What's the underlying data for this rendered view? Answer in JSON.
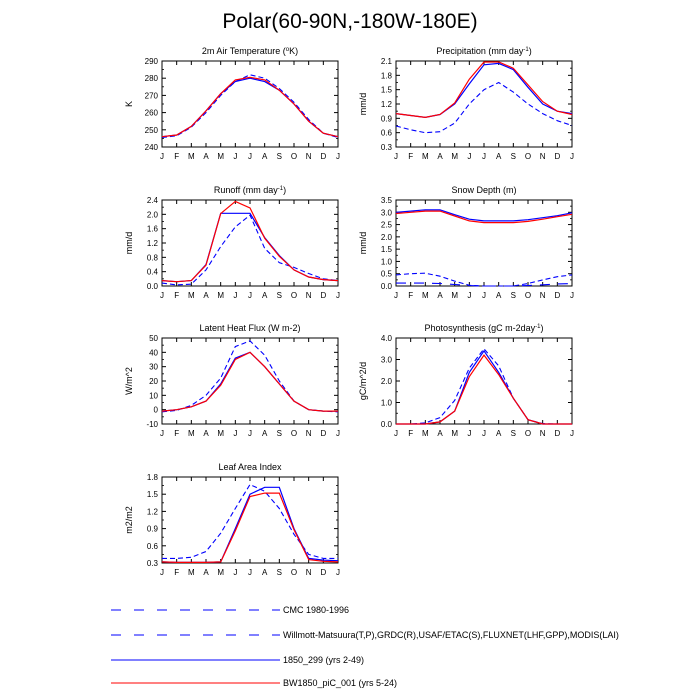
{
  "figure_title": "Polar(60-90N,-180W-180E)",
  "months": [
    "J",
    "F",
    "M",
    "A",
    "M",
    "J",
    "J",
    "A",
    "S",
    "O",
    "N",
    "D",
    "J"
  ],
  "colors": {
    "cmc": "#0000ff",
    "obs": "#0000ff",
    "case1": "#0000ff",
    "case2": "#ff0000"
  },
  "legend": [
    {
      "label": "CMC 1980-1996",
      "style": "cmc"
    },
    {
      "label": "Willmott-Matsuura(T,P),GRDC(R),USAF/ETAC(S),FLUXNET(LHF,GPP),MODIS(LAI)",
      "style": "obs"
    },
    {
      "label": "1850_299 (yrs 2-49)",
      "style": "case1"
    },
    {
      "label": "BW1850_piC_001 (yrs 5-24)",
      "style": "case2"
    }
  ],
  "chart_data": [
    {
      "type": "line",
      "id": "tsa",
      "title": "2m Air Temperature (°K)",
      "ylabel": "K",
      "ylim": [
        240,
        290
      ],
      "yticks": [
        "240",
        "250",
        "260",
        "270",
        "280",
        "290"
      ],
      "yvals": [
        240,
        250,
        260,
        270,
        280,
        290
      ],
      "series": [
        {
          "name": "Willmott-Matsuura(T,P),GRDC(R),USAF/ETAC(S),FLUXNET(LHF,GPP),MODIS(LAI)",
          "style": "obs",
          "values": [
            245.5,
            246.5,
            251.5,
            260,
            270,
            278,
            282,
            280,
            274,
            266,
            256,
            248,
            245.5
          ]
        },
        {
          "name": "1850_299 (yrs 2-49)",
          "style": "case1",
          "values": [
            246,
            247,
            252,
            261,
            271,
            278,
            280,
            278,
            273,
            265,
            255,
            248,
            246
          ]
        },
        {
          "name": "BW1850_piC_001 (yrs 5-24)",
          "style": "case2",
          "values": [
            246,
            247,
            252,
            261,
            271,
            279,
            280.5,
            279,
            273,
            265,
            255,
            248,
            246
          ]
        }
      ]
    },
    {
      "type": "line",
      "id": "precip",
      "title": "Precipitation (mm day-1)",
      "ylabel": "mm/d",
      "ylim": [
        0.3,
        2.1
      ],
      "yticks": [
        "0.3",
        "0.6",
        "0.9",
        "1.2",
        "1.5",
        "1.8",
        "2.1"
      ],
      "yvals": [
        0.3,
        0.6,
        0.9,
        1.2,
        1.5,
        1.8,
        2.1
      ],
      "series": [
        {
          "name": "Willmott-Matsuura(T,P),GRDC(R),USAF/ETAC(S),FLUXNET(LHF,GPP),MODIS(LAI)",
          "style": "obs",
          "values": [
            0.74,
            0.66,
            0.6,
            0.62,
            0.8,
            1.2,
            1.5,
            1.65,
            1.45,
            1.2,
            1.0,
            0.85,
            0.75
          ]
        },
        {
          "name": "1850_299 (yrs 2-49)",
          "style": "case1",
          "values": [
            1.0,
            0.96,
            0.92,
            0.98,
            1.2,
            1.62,
            2.02,
            2.05,
            1.92,
            1.55,
            1.2,
            1.05,
            1.0
          ]
        },
        {
          "name": "BW1850_piC_001 (yrs 5-24)",
          "style": "case2",
          "values": [
            1.0,
            0.96,
            0.92,
            0.98,
            1.22,
            1.72,
            2.08,
            2.08,
            1.95,
            1.6,
            1.25,
            1.05,
            0.98
          ]
        }
      ]
    },
    {
      "type": "line",
      "id": "runoff",
      "title": "Runoff (mm day-1)",
      "ylabel": "mm/d",
      "ylim": [
        0,
        2.4
      ],
      "yticks": [
        "0.0",
        "0.4",
        "0.8",
        "1.2",
        "1.6",
        "2.0",
        "2.4"
      ],
      "yvals": [
        0,
        0.4,
        0.8,
        1.2,
        1.6,
        2.0,
        2.4
      ],
      "series": [
        {
          "name": "Willmott-Matsuura(T,P),GRDC(R),USAF/ETAC(S),FLUXNET(LHF,GPP),MODIS(LAI)",
          "style": "obs",
          "values": [
            0.08,
            0.03,
            0.05,
            0.45,
            1.1,
            1.65,
            1.98,
            1.05,
            0.65,
            0.52,
            0.35,
            0.2,
            0.15
          ]
        },
        {
          "name": "1850_299 (yrs 2-49)",
          "style": "case1",
          "values": [
            0.15,
            0.12,
            0.15,
            0.6,
            2.03,
            2.03,
            2.03,
            1.35,
            0.85,
            0.45,
            0.25,
            0.18,
            0.15
          ]
        },
        {
          "name": "BW1850_piC_001 (yrs 5-24)",
          "style": "case2",
          "values": [
            0.15,
            0.12,
            0.15,
            0.58,
            2.02,
            2.36,
            2.18,
            1.33,
            0.83,
            0.45,
            0.25,
            0.18,
            0.15
          ]
        }
      ]
    },
    {
      "type": "line",
      "id": "snowdp",
      "title": "Snow Depth (m)",
      "ylabel": "mm/d",
      "ylim": [
        0,
        3.5
      ],
      "yticks": [
        "0.0",
        "0.5",
        "1.0",
        "1.5",
        "2.0",
        "2.5",
        "3.0",
        "3.5"
      ],
      "yvals": [
        0,
        0.5,
        1.0,
        1.5,
        2.0,
        2.5,
        3.0,
        3.5
      ],
      "series": [
        {
          "name": "CMC 1980-1996",
          "style": "cmc",
          "values": [
            0.12,
            0.12,
            0.12,
            0.1,
            0.06,
            0.02,
            0.0,
            0.0,
            0.0,
            0.02,
            0.05,
            0.08,
            0.1
          ]
        },
        {
          "name": "Willmott-Matsuura(T,P),GRDC(R),USAF/ETAC(S),FLUXNET(LHF,GPP),MODIS(LAI)",
          "style": "obs",
          "values": [
            0.45,
            0.5,
            0.52,
            0.4,
            0.2,
            0.03,
            0.0,
            0.0,
            0.0,
            0.1,
            0.25,
            0.38,
            0.45
          ]
        },
        {
          "name": "1850_299 (yrs 2-49)",
          "style": "case1",
          "values": [
            3.0,
            3.05,
            3.1,
            3.1,
            2.9,
            2.72,
            2.65,
            2.65,
            2.65,
            2.7,
            2.78,
            2.86,
            2.98
          ]
        },
        {
          "name": "BW1850_piC_001 (yrs 5-24)",
          "style": "case2",
          "values": [
            2.95,
            3.0,
            3.05,
            3.05,
            2.85,
            2.65,
            2.58,
            2.58,
            2.58,
            2.63,
            2.72,
            2.82,
            2.92
          ]
        }
      ]
    },
    {
      "type": "line",
      "id": "lhf",
      "title": "Latent Heat Flux (W m-2)",
      "ylabel": "W/m^2",
      "ylim": [
        -10,
        50
      ],
      "yticks": [
        "-10",
        "0",
        "10",
        "20",
        "30",
        "40",
        "50"
      ],
      "yvals": [
        -10,
        0,
        10,
        20,
        30,
        40,
        50
      ],
      "series": [
        {
          "name": "Willmott-Matsuura(T,P),GRDC(R),USAF/ETAC(S),FLUXNET(LHF,GPP),MODIS(LAI)",
          "style": "obs",
          "values": [
            -1.5,
            -0.5,
            3,
            10,
            22,
            44,
            48,
            38,
            20,
            6,
            0,
            -1,
            -1.5
          ]
        },
        {
          "name": "1850_299 (yrs 2-49)",
          "style": "case1",
          "values": [
            -1,
            0,
            2,
            6,
            18,
            36,
            40,
            30,
            18,
            6,
            0,
            -1,
            -1
          ]
        },
        {
          "name": "BW1850_piC_001 (yrs 5-24)",
          "style": "case2",
          "values": [
            -1,
            0,
            2,
            6,
            17,
            35,
            40,
            30,
            18,
            6,
            0,
            -1,
            -1
          ]
        }
      ]
    },
    {
      "type": "line",
      "id": "gpp",
      "title": "Photosynthesis (gC m-2day-1)",
      "ylabel": "gC/m^2/d",
      "ylim": [
        0,
        4.0
      ],
      "yticks": [
        "0.0",
        "1.0",
        "2.0",
        "3.0",
        "4.0"
      ],
      "yvals": [
        0,
        1,
        2,
        3,
        4
      ],
      "series": [
        {
          "name": "Willmott-Matsuura(T,P),GRDC(R),USAF/ETAC(S),FLUXNET(LHF,GPP),MODIS(LAI)",
          "style": "obs",
          "values": [
            0,
            0,
            0.05,
            0.3,
            1.1,
            2.6,
            3.5,
            2.7,
            1.2,
            0.2,
            0.02,
            0,
            0
          ]
        },
        {
          "name": "1850_299 (yrs 2-49)",
          "style": "case1",
          "values": [
            0,
            0,
            0,
            0.1,
            0.6,
            2.4,
            3.4,
            2.4,
            1.2,
            0.2,
            0,
            0,
            0
          ]
        },
        {
          "name": "BW1850_piC_001 (yrs 5-24)",
          "style": "case2",
          "values": [
            0,
            0,
            0,
            0.1,
            0.6,
            2.2,
            3.2,
            2.3,
            1.2,
            0.2,
            0,
            0,
            0
          ]
        }
      ]
    },
    {
      "type": "line",
      "id": "lai",
      "title": "Leaf Area Index",
      "ylabel": "m2/m2",
      "ylim": [
        0.3,
        1.8
      ],
      "yticks": [
        "0.3",
        "0.6",
        "0.9",
        "1.2",
        "1.5",
        "1.8"
      ],
      "yvals": [
        0.3,
        0.6,
        0.9,
        1.2,
        1.5,
        1.8
      ],
      "series": [
        {
          "name": "Willmott-Matsuura(T,P),GRDC(R),USAF/ETAC(S),FLUXNET(LHF,GPP),MODIS(LAI)",
          "style": "obs",
          "values": [
            0.38,
            0.38,
            0.4,
            0.5,
            0.82,
            1.25,
            1.67,
            1.55,
            1.25,
            0.8,
            0.45,
            0.38,
            0.38
          ]
        },
        {
          "name": "1850_299 (yrs 2-49)",
          "style": "case1",
          "values": [
            0.32,
            0.31,
            0.31,
            0.31,
            0.32,
            0.9,
            1.5,
            1.62,
            1.62,
            0.9,
            0.38,
            0.35,
            0.34
          ]
        },
        {
          "name": "BW1850_piC_001 (yrs 5-24)",
          "style": "case2",
          "values": [
            0.32,
            0.31,
            0.31,
            0.31,
            0.32,
            0.86,
            1.46,
            1.52,
            1.52,
            0.88,
            0.36,
            0.33,
            0.32
          ]
        }
      ]
    }
  ]
}
